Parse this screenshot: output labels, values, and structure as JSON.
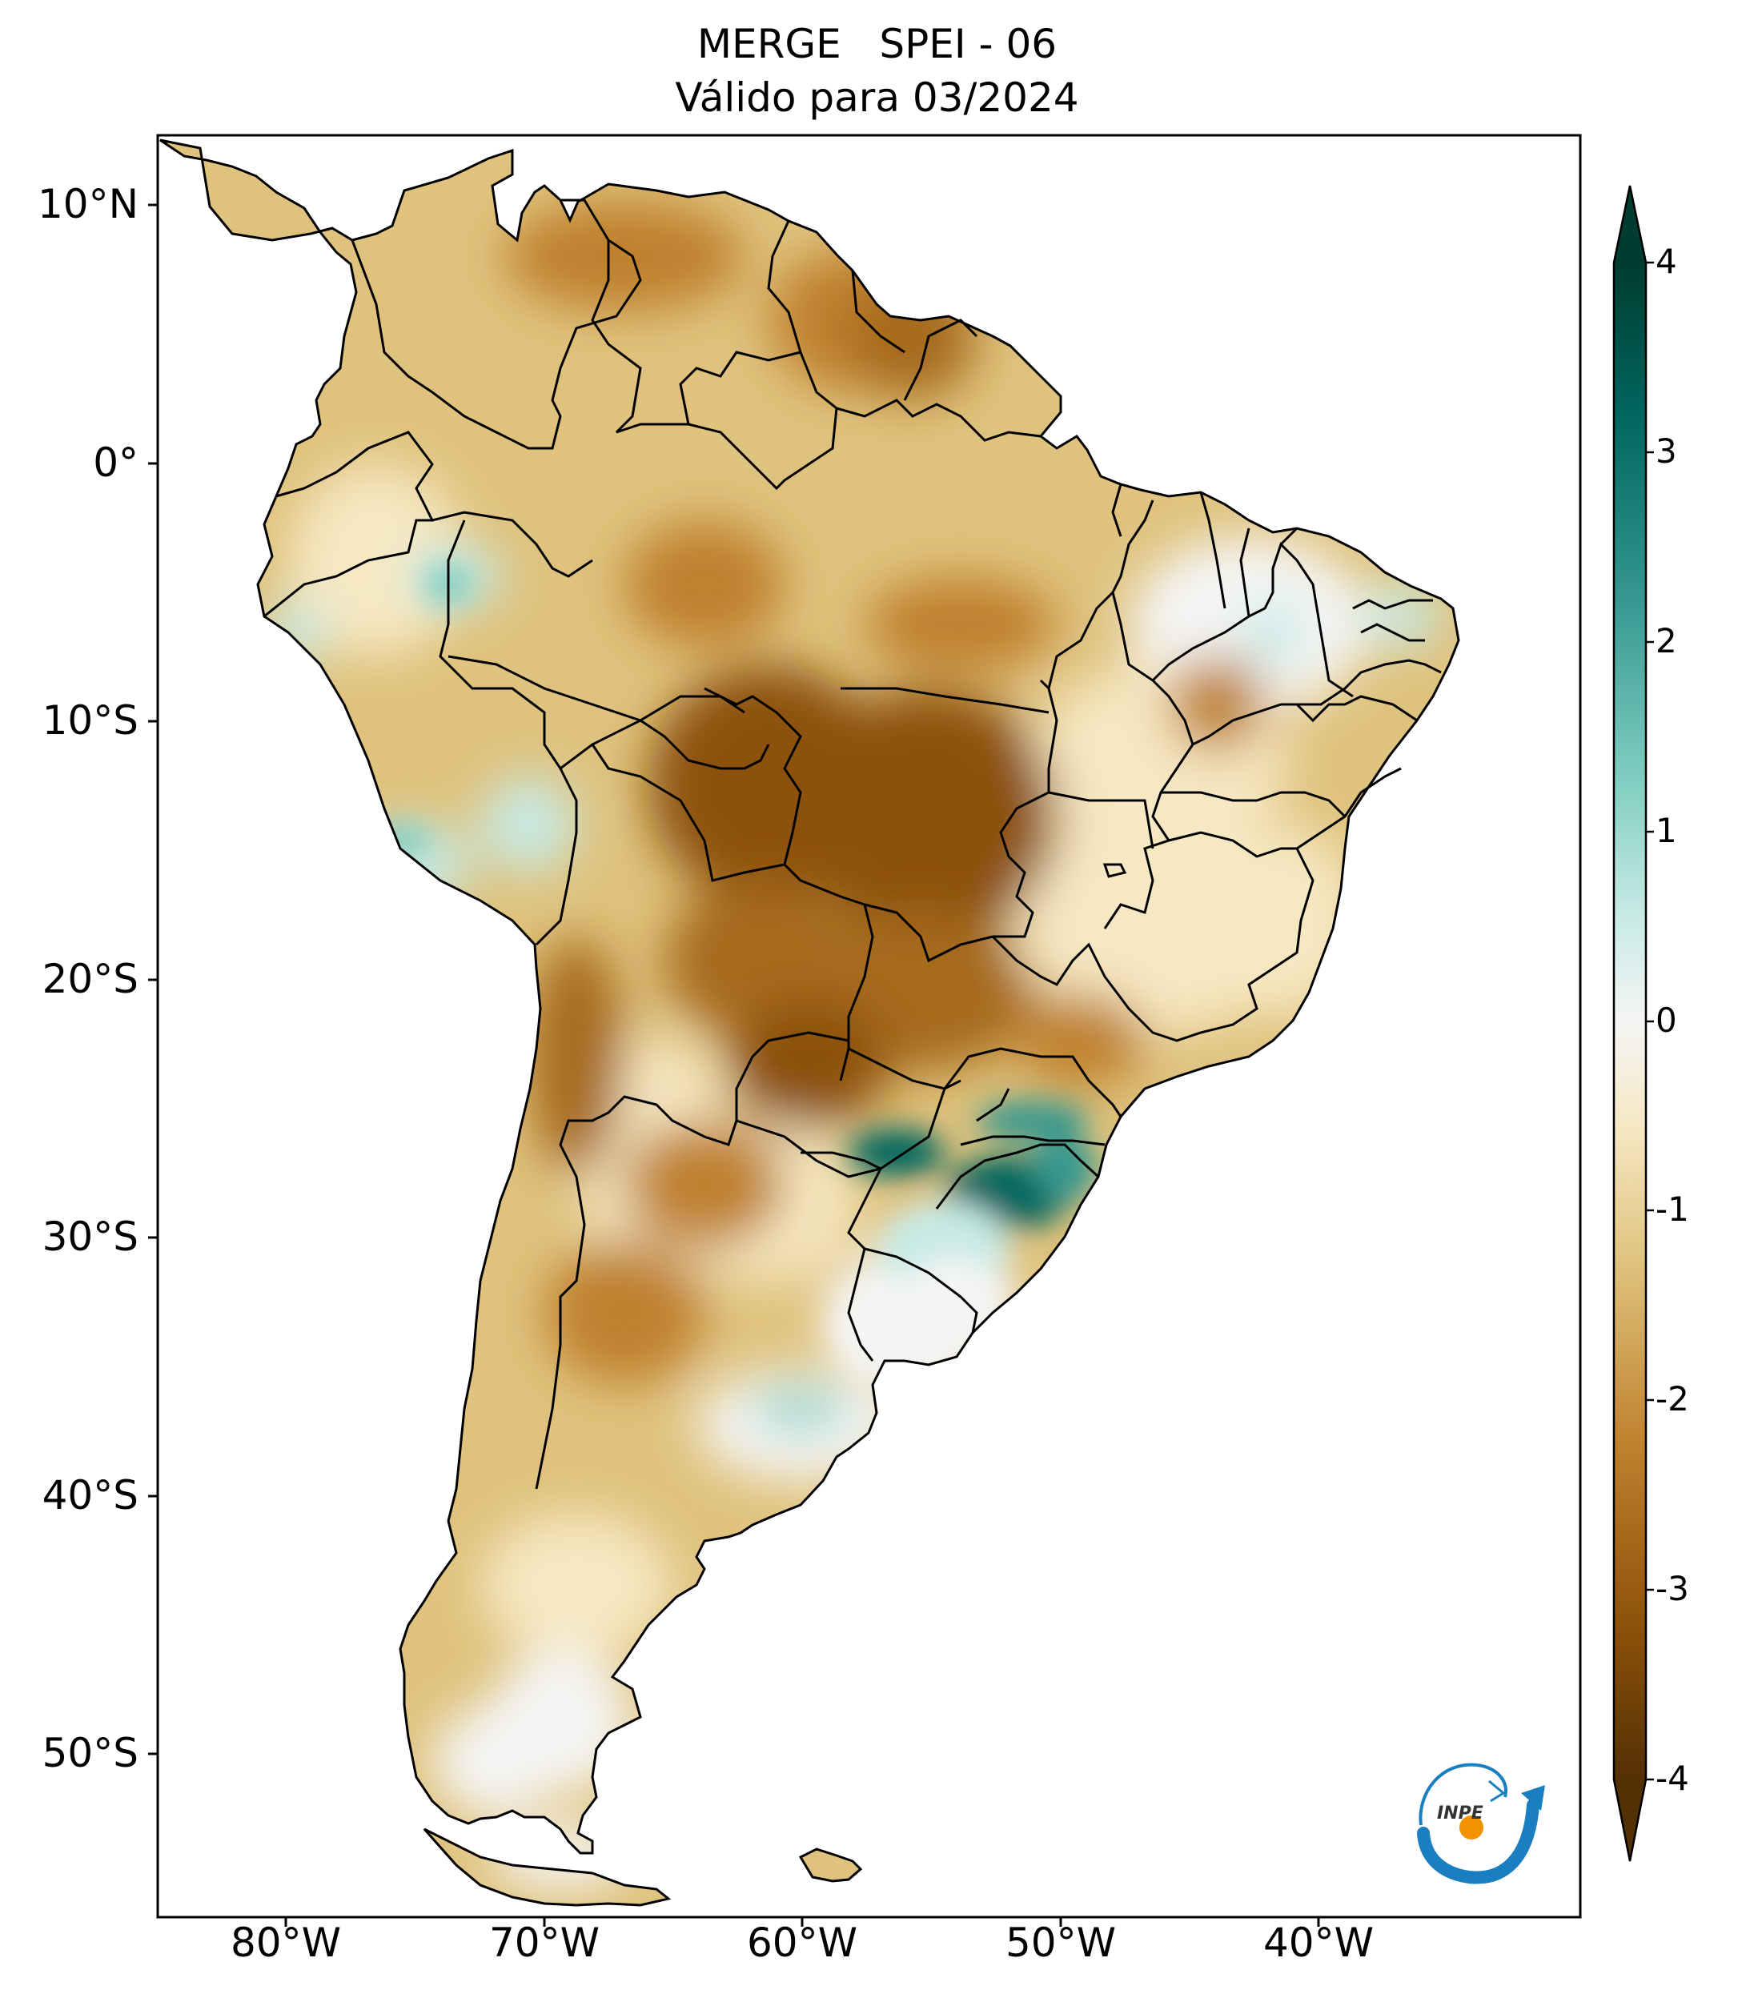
{
  "map": {
    "title_line1": "MERGE   SPEI - 06",
    "title_line2": "Válido para 03/2024",
    "lat_ticks": [
      "10°N",
      "0°",
      "10°S",
      "20°S",
      "30°S",
      "40°S",
      "50°S"
    ],
    "lon_ticks": [
      "80°W",
      "70°W",
      "60°W",
      "50°W",
      "40°W"
    ],
    "region": "South America",
    "projection": "PlateCarree"
  },
  "colorbar": {
    "colormap": "BrBG",
    "min": -4,
    "max": 4,
    "extend": "both",
    "ticks": [
      "4",
      "3",
      "2",
      "1",
      "0",
      "-1",
      "-2",
      "-3",
      "-4"
    ]
  },
  "logo": {
    "text": "INPE"
  },
  "colors": {
    "dry_extreme": "#543005",
    "dry_strong": "#8c510a",
    "dry_moderate": "#bf812d",
    "dry_mild": "#dfc27d",
    "dry_light": "#f6e8c3",
    "neutral": "#f5f5f5",
    "wet_light": "#c7eae5",
    "wet_mild": "#80cdc1",
    "wet_moderate": "#35978f",
    "wet_strong": "#01665e",
    "wet_extreme": "#003c30"
  }
}
